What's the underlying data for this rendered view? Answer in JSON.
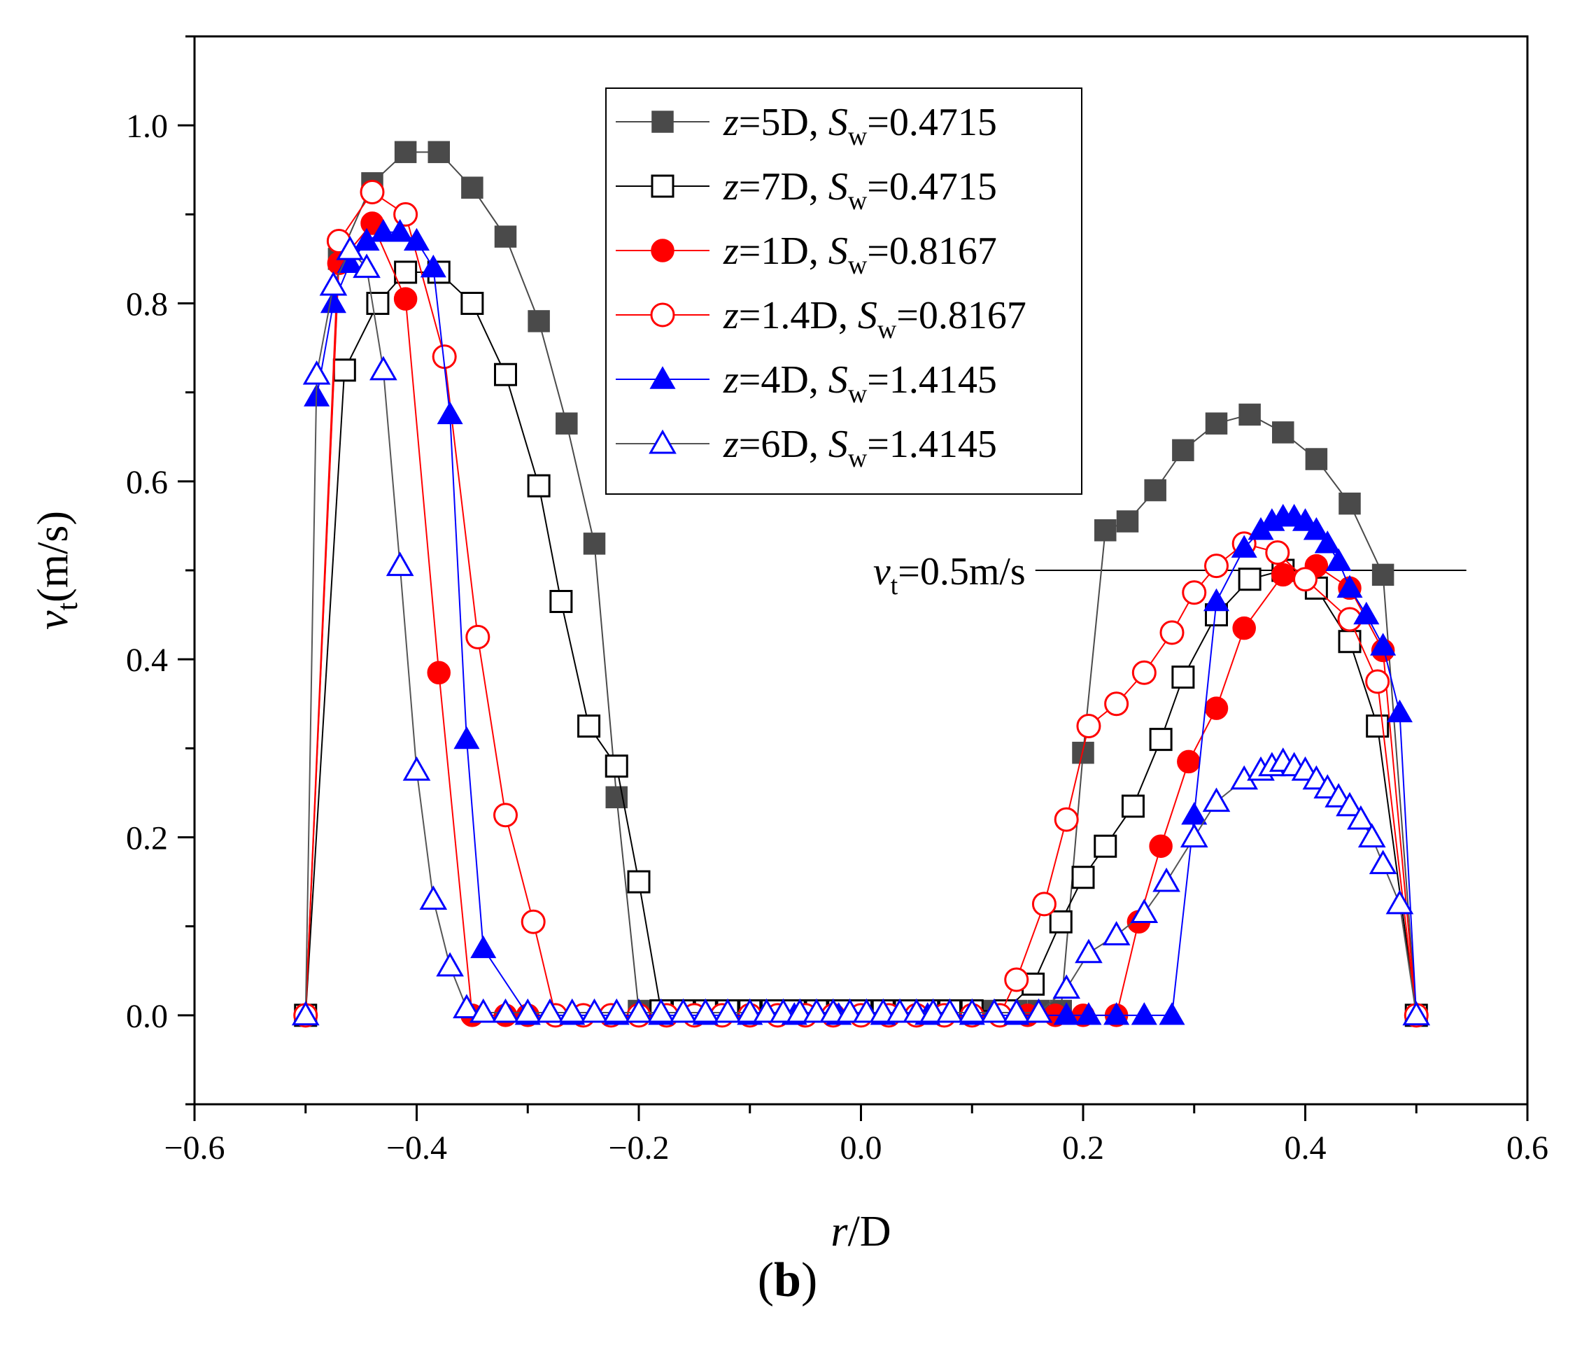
{
  "chart_data": {
    "type": "line",
    "title": "",
    "xlabel": {
      "italic": "r",
      "rest": "/D"
    },
    "ylabel": {
      "var": "v",
      "sub": "t",
      "rest": "(m/s)"
    },
    "xlim": [
      -0.6,
      0.6
    ],
    "ylim": [
      -0.1,
      1.1
    ],
    "x_ticks": [
      -0.6,
      -0.4,
      -0.2,
      0.0,
      0.2,
      0.4,
      0.6
    ],
    "x_tick_labels": [
      "−0.6",
      "−0.4",
      "−0.2",
      "0.0",
      "0.2",
      "0.4",
      "0.6"
    ],
    "y_ticks": [
      0.0,
      0.2,
      0.4,
      0.6,
      0.8,
      1.0
    ],
    "y_tick_labels": [
      "0.0",
      "0.2",
      "0.4",
      "0.6",
      "0.8",
      "1.0"
    ],
    "grid": false,
    "legend_position": "top-center",
    "reference_line": {
      "y": 0.5,
      "x_start": 0.157,
      "x_end": 0.545,
      "label_var": "v",
      "label_sub": "t",
      "label_rest": "=0.5m/s"
    },
    "series": [
      {
        "name": "z=5D, Sw=0.4715",
        "label_z": "z",
        "label_zval": "=5D, ",
        "label_s": "S",
        "label_ssub": "w",
        "label_sval": "=0.4715",
        "marker": "square",
        "filled": true,
        "color": "#4a4a4a",
        "line_color": "#4a4a4a",
        "x": [
          -0.5,
          -0.47,
          -0.44,
          -0.41,
          -0.38,
          -0.35,
          -0.32,
          -0.29,
          -0.265,
          -0.24,
          -0.22,
          -0.2,
          -0.18,
          -0.16,
          -0.14,
          -0.12,
          -0.1,
          -0.08,
          -0.06,
          -0.04,
          -0.02,
          0.0,
          0.02,
          0.04,
          0.06,
          0.08,
          0.1,
          0.12,
          0.14,
          0.16,
          0.18,
          0.2,
          0.22,
          0.24,
          0.265,
          0.29,
          0.32,
          0.35,
          0.38,
          0.41,
          0.44,
          0.47,
          0.5
        ],
        "y": [
          0.0,
          0.85,
          0.935,
          0.97,
          0.97,
          0.93,
          0.875,
          0.78,
          0.665,
          0.53,
          0.245,
          0.005,
          0.005,
          0.005,
          0.005,
          0.005,
          0.005,
          0.005,
          0.005,
          0.005,
          0.005,
          0.005,
          0.005,
          0.005,
          0.005,
          0.005,
          0.005,
          0.005,
          0.005,
          0.005,
          0.005,
          0.295,
          0.545,
          0.555,
          0.59,
          0.635,
          0.665,
          0.675,
          0.655,
          0.625,
          0.575,
          0.495,
          0.0
        ]
      },
      {
        "name": "z=7D, Sw=0.4715",
        "label_z": "z",
        "label_zval": "=7D, ",
        "label_s": "S",
        "label_ssub": "w",
        "label_sval": "=0.4715",
        "marker": "square",
        "filled": false,
        "color": "#000000",
        "line_color": "#000000",
        "x": [
          -0.5,
          -0.465,
          -0.435,
          -0.41,
          -0.38,
          -0.35,
          -0.32,
          -0.29,
          -0.27,
          -0.245,
          -0.22,
          -0.2,
          -0.18,
          -0.16,
          -0.14,
          -0.12,
          -0.1,
          -0.08,
          -0.06,
          -0.04,
          -0.02,
          0.0,
          0.02,
          0.04,
          0.06,
          0.08,
          0.1,
          0.13,
          0.155,
          0.18,
          0.2,
          0.22,
          0.245,
          0.27,
          0.29,
          0.32,
          0.35,
          0.38,
          0.41,
          0.44,
          0.465,
          0.5
        ],
        "y": [
          0.0,
          0.725,
          0.8,
          0.835,
          0.835,
          0.8,
          0.72,
          0.595,
          0.465,
          0.325,
          0.28,
          0.15,
          0.005,
          0.005,
          0.005,
          0.005,
          0.005,
          0.005,
          0.005,
          0.005,
          0.005,
          0.005,
          0.005,
          0.005,
          0.005,
          0.005,
          0.005,
          0.005,
          0.035,
          0.105,
          0.155,
          0.19,
          0.235,
          0.31,
          0.38,
          0.45,
          0.49,
          0.5,
          0.48,
          0.42,
          0.325,
          0.0
        ]
      },
      {
        "name": "z=1D, Sw=0.8167",
        "label_z": "z",
        "label_zval": "=1D, ",
        "label_s": "S",
        "label_ssub": "w",
        "label_sval": "=0.8167",
        "marker": "circle",
        "filled": true,
        "color": "#ff0000",
        "line_color": "#ff0000",
        "x": [
          -0.5,
          -0.47,
          -0.44,
          -0.41,
          -0.38,
          -0.35,
          -0.32,
          -0.3,
          -0.275,
          -0.25,
          -0.225,
          -0.2,
          -0.175,
          -0.15,
          -0.125,
          -0.1,
          -0.075,
          -0.05,
          -0.025,
          0.0,
          0.025,
          0.05,
          0.075,
          0.1,
          0.125,
          0.15,
          0.175,
          0.2,
          0.23,
          0.25,
          0.27,
          0.295,
          0.32,
          0.345,
          0.38,
          0.41,
          0.44,
          0.47,
          0.5
        ],
        "y": [
          0.0,
          0.845,
          0.89,
          0.805,
          0.385,
          0.0,
          0.0,
          0.0,
          0.0,
          0.0,
          0.0,
          0.0,
          0.0,
          0.0,
          0.0,
          0.0,
          0.0,
          0.0,
          0.0,
          0.0,
          0.0,
          0.0,
          0.0,
          0.0,
          0.0,
          0.0,
          0.0,
          0.0,
          0.0,
          0.105,
          0.19,
          0.285,
          0.345,
          0.435,
          0.495,
          0.505,
          0.48,
          0.41,
          0.0
        ]
      },
      {
        "name": "z=1.4D, Sw=0.8167",
        "label_z": "z",
        "label_zval": "=1.4D, ",
        "label_s": "S",
        "label_ssub": "w",
        "label_sval": "=0.8167",
        "marker": "circle",
        "filled": false,
        "color": "#ff0000",
        "line_color": "#ff0000",
        "x": [
          -0.5,
          -0.47,
          -0.44,
          -0.41,
          -0.375,
          -0.345,
          -0.32,
          -0.295,
          -0.275,
          -0.25,
          -0.225,
          -0.2,
          -0.175,
          -0.15,
          -0.125,
          -0.1,
          -0.075,
          -0.05,
          -0.025,
          0.0,
          0.025,
          0.05,
          0.075,
          0.1,
          0.125,
          0.14,
          0.165,
          0.185,
          0.205,
          0.23,
          0.255,
          0.28,
          0.3,
          0.32,
          0.345,
          0.375,
          0.4,
          0.44,
          0.465,
          0.5
        ],
        "y": [
          0.0,
          0.87,
          0.925,
          0.9,
          0.74,
          0.425,
          0.225,
          0.105,
          0.0,
          0.0,
          0.0,
          0.0,
          0.0,
          0.0,
          0.0,
          0.0,
          0.0,
          0.0,
          0.0,
          0.0,
          0.0,
          0.0,
          0.0,
          0.0,
          0.0,
          0.04,
          0.125,
          0.22,
          0.325,
          0.35,
          0.385,
          0.43,
          0.475,
          0.505,
          0.53,
          0.52,
          0.49,
          0.445,
          0.375,
          0.0
        ]
      },
      {
        "name": "z=4D, Sw=1.4145",
        "label_z": "z",
        "label_zval": "=4D, ",
        "label_s": "S",
        "label_ssub": "w",
        "label_sval": "=1.4145",
        "marker": "triangle",
        "filled": true,
        "color": "#0000ff",
        "line_color": "#0000ff",
        "x": [
          -0.49,
          -0.475,
          -0.46,
          -0.445,
          -0.43,
          -0.415,
          -0.4,
          -0.385,
          -0.37,
          -0.355,
          -0.34,
          -0.3,
          -0.26,
          -0.22,
          -0.18,
          -0.14,
          -0.1,
          -0.06,
          -0.02,
          0.02,
          0.06,
          0.1,
          0.14,
          0.185,
          0.205,
          0.23,
          0.255,
          0.28,
          0.3,
          0.32,
          0.345,
          0.36,
          0.37,
          0.38,
          0.39,
          0.4,
          0.41,
          0.42,
          0.43,
          0.44,
          0.455,
          0.47,
          0.485,
          0.5
        ],
        "y": [
          0.695,
          0.8,
          0.845,
          0.87,
          0.88,
          0.88,
          0.87,
          0.84,
          0.675,
          0.31,
          0.075,
          0.0,
          0.0,
          0.0,
          0.0,
          0.0,
          0.0,
          0.0,
          0.0,
          0.0,
          0.0,
          0.0,
          0.0,
          0.0,
          0.0,
          0.0,
          0.0,
          0.0,
          0.225,
          0.465,
          0.525,
          0.545,
          0.555,
          0.56,
          0.56,
          0.555,
          0.545,
          0.53,
          0.51,
          0.48,
          0.45,
          0.415,
          0.34,
          0.0
        ]
      },
      {
        "name": "z=6D, Sw=1.4145",
        "label_z": "z",
        "label_zval": "=6D, ",
        "label_s": "S",
        "label_ssub": "w",
        "label_sval": "=1.4145",
        "marker": "triangle",
        "filled": false,
        "color": "#0000ff",
        "line_color": "#555555",
        "x": [
          -0.5,
          -0.49,
          -0.475,
          -0.46,
          -0.445,
          -0.43,
          -0.415,
          -0.4,
          -0.385,
          -0.37,
          -0.355,
          -0.34,
          -0.32,
          -0.3,
          -0.28,
          -0.26,
          -0.24,
          -0.22,
          -0.2,
          -0.18,
          -0.16,
          -0.14,
          -0.12,
          -0.1,
          -0.085,
          -0.07,
          -0.055,
          -0.04,
          -0.025,
          -0.01,
          0.005,
          0.02,
          0.035,
          0.05,
          0.065,
          0.08,
          0.1,
          0.12,
          0.14,
          0.16,
          0.185,
          0.205,
          0.23,
          0.255,
          0.275,
          0.3,
          0.32,
          0.345,
          0.36,
          0.37,
          0.38,
          0.39,
          0.4,
          0.41,
          0.42,
          0.43,
          0.44,
          0.45,
          0.46,
          0.47,
          0.485,
          0.5
        ],
        "y": [
          0.0,
          0.72,
          0.82,
          0.86,
          0.84,
          0.725,
          0.505,
          0.275,
          0.13,
          0.055,
          0.008,
          0.003,
          0.003,
          0.003,
          0.003,
          0.003,
          0.003,
          0.003,
          0.003,
          0.003,
          0.003,
          0.003,
          0.003,
          0.003,
          0.003,
          0.003,
          0.003,
          0.003,
          0.003,
          0.003,
          0.003,
          0.003,
          0.003,
          0.003,
          0.003,
          0.003,
          0.003,
          0.003,
          0.003,
          0.003,
          0.03,
          0.07,
          0.09,
          0.115,
          0.15,
          0.2,
          0.24,
          0.265,
          0.275,
          0.28,
          0.285,
          0.28,
          0.275,
          0.265,
          0.255,
          0.245,
          0.235,
          0.22,
          0.2,
          0.17,
          0.125,
          0.0
        ]
      }
    ]
  },
  "caption": {
    "open": "(",
    "letter": "b",
    "close": ")"
  }
}
